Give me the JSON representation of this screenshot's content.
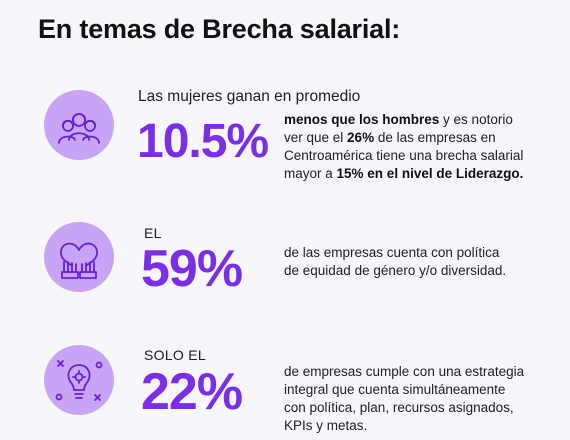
{
  "page": {
    "title": "En temas de Brecha salarial:"
  },
  "stats": [
    {
      "icon": "women-group-icon",
      "lead": "Las mujeres ganan en promedio",
      "value": "10.5%",
      "desc": {
        "bold1": "menos que los hombres",
        "t1": " y es notorio ver que el ",
        "bold2": "26%",
        "t2": " de las empresas en Centroamérica tiene una brecha salarial mayor a ",
        "bold3": "15% en el nivel de Liderazgo."
      }
    },
    {
      "icon": "hands-heart-icon",
      "lead": "EL",
      "value": "59%",
      "desc": {
        "line1": "de las empresas cuenta con política",
        "line2": "de equidad de género y/o diversidad."
      }
    },
    {
      "icon": "lightbulb-gear-icon",
      "lead": "SOLO EL",
      "value": "22%",
      "desc": {
        "line1": "de empresas cumple con una estrategia",
        "line2": "integral que cuenta simultáneamente",
        "line3": "con política, plan, recursos asignados,",
        "line4": "KPIs y metas."
      }
    }
  ],
  "colors": {
    "accent": "#7a2ee8",
    "icon_bg": "#c7a4f5",
    "background": "#f6f6fb"
  }
}
